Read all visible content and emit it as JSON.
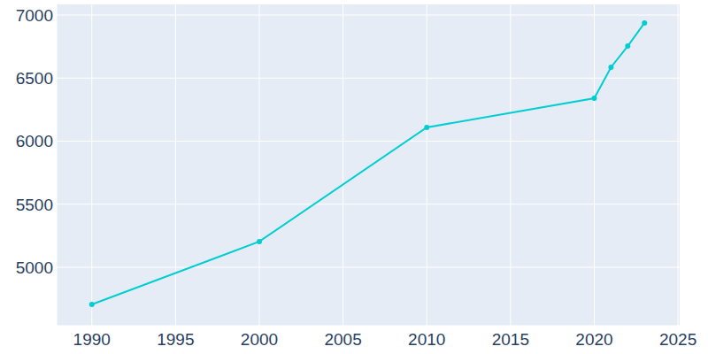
{
  "chart_data": {
    "type": "line",
    "x": [
      1990,
      2000,
      2010,
      2020,
      2021,
      2022,
      2023
    ],
    "values": [
      4705,
      5204,
      6109,
      6340,
      6586,
      6754,
      6937
    ],
    "color": "#00ced1",
    "marker": "circle",
    "xlim": [
      1987.9,
      2025.1
    ],
    "xticks": [
      1990,
      1995,
      2000,
      2005,
      2010,
      2015,
      2020,
      2025
    ],
    "ylim": [
      4537,
      7084
    ],
    "yticks": [
      5000,
      5500,
      6000,
      6500,
      7000
    ],
    "grid": true
  }
}
